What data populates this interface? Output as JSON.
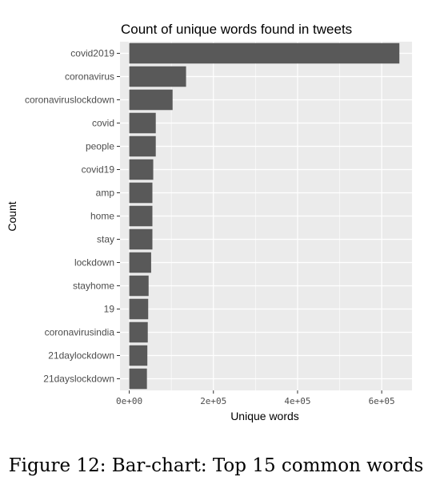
{
  "chart_data": {
    "type": "bar",
    "orientation": "horizontal",
    "title": "Count of unique words found in tweets",
    "xlabel": "Unique words",
    "ylabel": "Count",
    "categories": [
      "covid2019",
      "coronavirus",
      "coronaviruslockdown",
      "covid",
      "people",
      "covid19",
      "amp",
      "home",
      "stay",
      "lockdown",
      "stayhome",
      "19",
      "coronavirusindia",
      "21daylockdown",
      "21dayslockdown"
    ],
    "values": [
      642000,
      135000,
      103000,
      63000,
      63000,
      57000,
      55000,
      55000,
      55000,
      52000,
      46000,
      45000,
      44000,
      43000,
      42000
    ],
    "xlim": [
      -22000,
      672000
    ],
    "xticks": [
      0,
      200000,
      400000,
      600000
    ],
    "xtick_labels": [
      "0e+00",
      "2e+05",
      "4e+05",
      "6e+05"
    ],
    "grid": true,
    "bar_color": "#595959",
    "panel_color": "#ebebeb",
    "grid_color": "#ffffff"
  },
  "figure": {
    "caption": "Figure 12: Bar-chart: Top 15 common words"
  }
}
